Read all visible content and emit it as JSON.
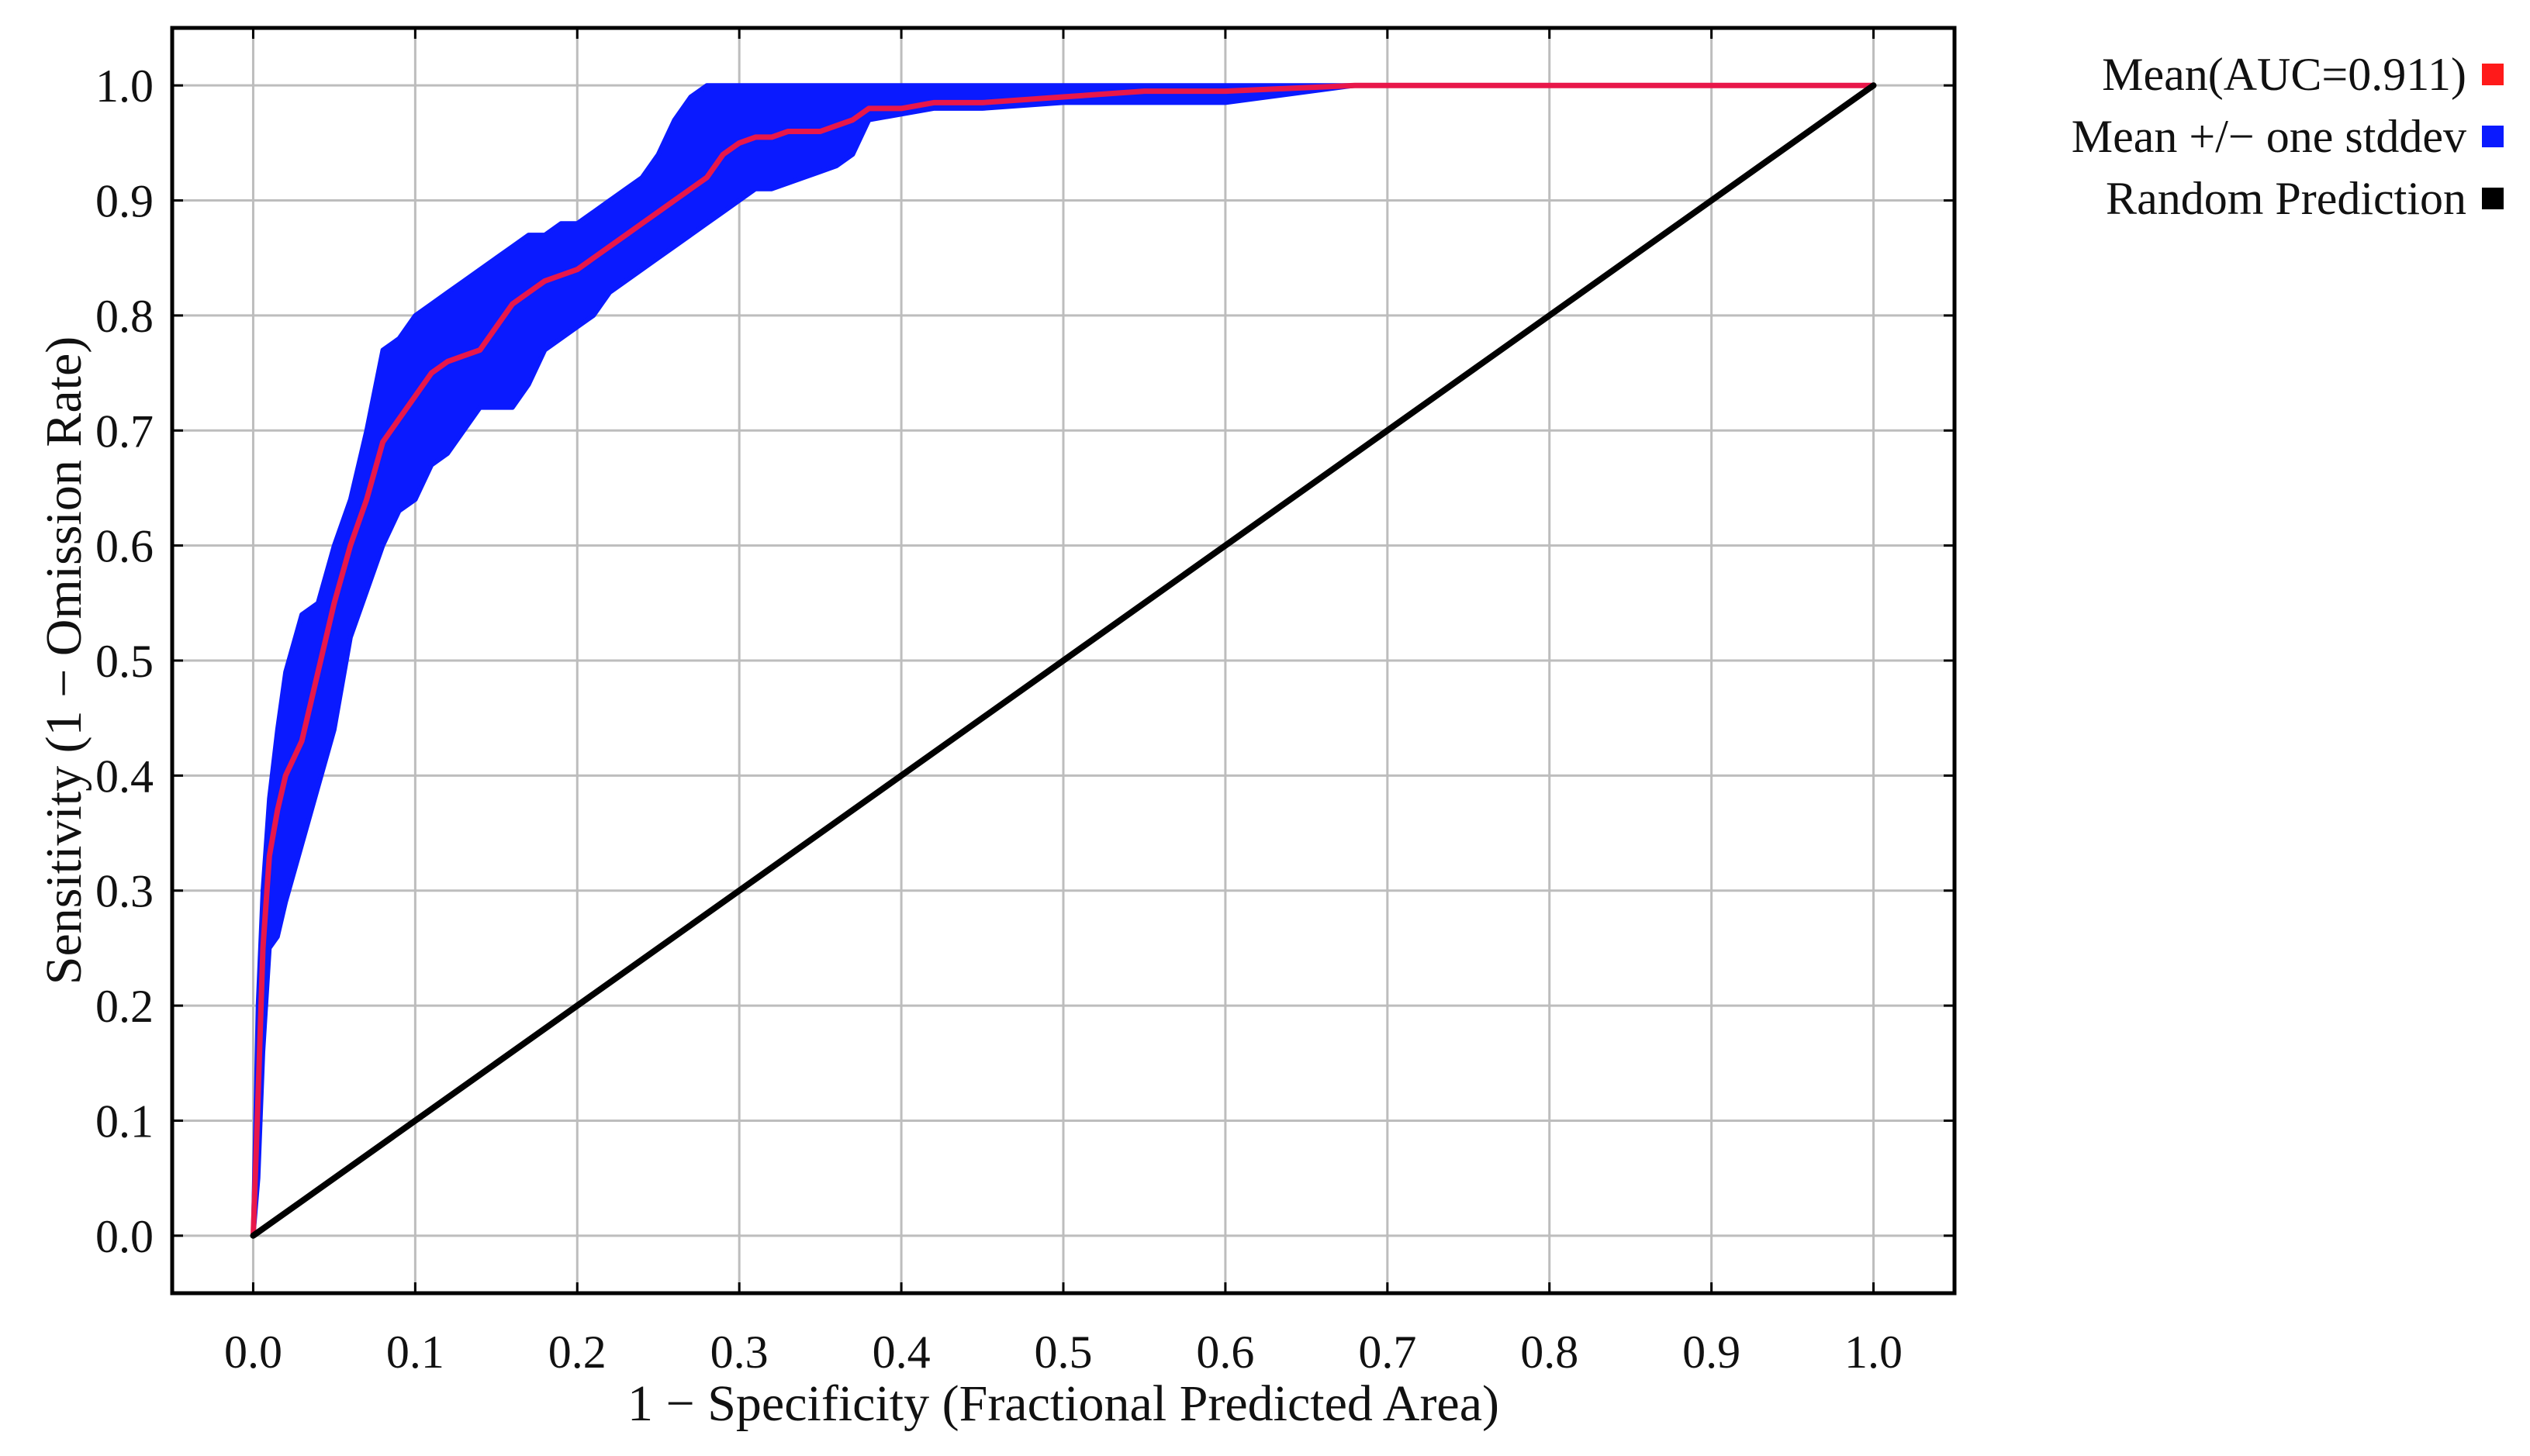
{
  "chart_data": {
    "type": "line",
    "title": "",
    "xlabel": "1 − Specificity (Fractional Predicted Area)",
    "ylabel": "Sensitivity (1 − Omission Rate)",
    "xlim": [
      -0.05,
      1.05
    ],
    "ylim": [
      -0.05,
      1.05
    ],
    "grid": true,
    "legend_position": "top-right, outside plot",
    "xticks": [
      "0.0",
      "0.1",
      "0.2",
      "0.3",
      "0.4",
      "0.5",
      "0.6",
      "0.7",
      "0.8",
      "0.9",
      "1.0"
    ],
    "yticks": [
      "0.0",
      "0.1",
      "0.2",
      "0.3",
      "0.4",
      "0.5",
      "0.6",
      "0.7",
      "0.8",
      "0.9",
      "1.0"
    ],
    "legend": [
      {
        "label": "Mean(AUC=0.911)",
        "color": "#ff1a1a"
      },
      {
        "label": "Mean +/− one stddev",
        "color": "#0a1aff"
      },
      {
        "label": "Random Prediction",
        "color": "#000000"
      }
    ],
    "series": [
      {
        "name": "Mean(AUC=0.911)",
        "color": "#e8174a",
        "x": [
          0.0,
          0.003,
          0.006,
          0.01,
          0.015,
          0.02,
          0.03,
          0.04,
          0.05,
          0.06,
          0.07,
          0.08,
          0.09,
          0.1,
          0.11,
          0.12,
          0.13,
          0.14,
          0.15,
          0.16,
          0.17,
          0.18,
          0.19,
          0.2,
          0.21,
          0.22,
          0.23,
          0.24,
          0.25,
          0.26,
          0.27,
          0.28,
          0.29,
          0.3,
          0.31,
          0.32,
          0.33,
          0.34,
          0.35,
          0.36,
          0.37,
          0.38,
          0.4,
          0.42,
          0.45,
          0.5,
          0.55,
          0.6,
          0.68,
          1.0
        ],
        "y": [
          0.0,
          0.12,
          0.25,
          0.33,
          0.37,
          0.4,
          0.43,
          0.49,
          0.55,
          0.6,
          0.64,
          0.69,
          0.71,
          0.73,
          0.75,
          0.76,
          0.765,
          0.77,
          0.79,
          0.81,
          0.82,
          0.83,
          0.835,
          0.84,
          0.85,
          0.86,
          0.87,
          0.88,
          0.89,
          0.9,
          0.91,
          0.92,
          0.94,
          0.95,
          0.955,
          0.955,
          0.96,
          0.96,
          0.96,
          0.965,
          0.97,
          0.98,
          0.98,
          0.985,
          0.985,
          0.99,
          0.995,
          0.995,
          1.0,
          1.0
        ]
      },
      {
        "name": "Mean +/− one stddev",
        "type": "band",
        "color": "#0a1aff",
        "x": [
          0.0,
          0.003,
          0.006,
          0.01,
          0.015,
          0.02,
          0.03,
          0.04,
          0.05,
          0.06,
          0.07,
          0.08,
          0.09,
          0.1,
          0.11,
          0.12,
          0.13,
          0.14,
          0.15,
          0.16,
          0.17,
          0.18,
          0.19,
          0.2,
          0.21,
          0.22,
          0.23,
          0.24,
          0.25,
          0.26,
          0.27,
          0.28,
          0.29,
          0.3,
          0.31,
          0.32,
          0.33,
          0.34,
          0.35,
          0.36,
          0.37,
          0.38,
          0.4,
          0.42,
          0.45,
          0.5,
          0.55,
          0.6,
          0.68,
          1.0
        ],
        "lower": [
          0.0,
          0.05,
          0.16,
          0.25,
          0.26,
          0.29,
          0.34,
          0.39,
          0.44,
          0.52,
          0.56,
          0.6,
          0.63,
          0.64,
          0.67,
          0.68,
          0.7,
          0.72,
          0.72,
          0.72,
          0.74,
          0.77,
          0.78,
          0.79,
          0.8,
          0.82,
          0.83,
          0.84,
          0.85,
          0.86,
          0.87,
          0.88,
          0.89,
          0.9,
          0.91,
          0.91,
          0.915,
          0.92,
          0.925,
          0.93,
          0.94,
          0.97,
          0.975,
          0.98,
          0.98,
          0.985,
          0.985,
          0.985,
          1.0,
          1.0
        ],
        "upper": [
          0.0,
          0.2,
          0.3,
          0.38,
          0.44,
          0.49,
          0.54,
          0.55,
          0.6,
          0.64,
          0.7,
          0.77,
          0.78,
          0.8,
          0.81,
          0.82,
          0.83,
          0.84,
          0.85,
          0.86,
          0.87,
          0.87,
          0.88,
          0.88,
          0.89,
          0.9,
          0.91,
          0.92,
          0.94,
          0.97,
          0.99,
          1.0,
          1.0,
          1.0,
          1.0,
          1.0,
          1.0,
          1.0,
          1.0,
          1.0,
          1.0,
          1.0,
          1.0,
          1.0,
          1.0,
          1.0,
          1.0,
          1.0,
          1.0,
          1.0
        ]
      },
      {
        "name": "Random Prediction",
        "color": "#000000",
        "x": [
          0.0,
          1.0
        ],
        "y": [
          0.0,
          1.0
        ]
      }
    ]
  }
}
